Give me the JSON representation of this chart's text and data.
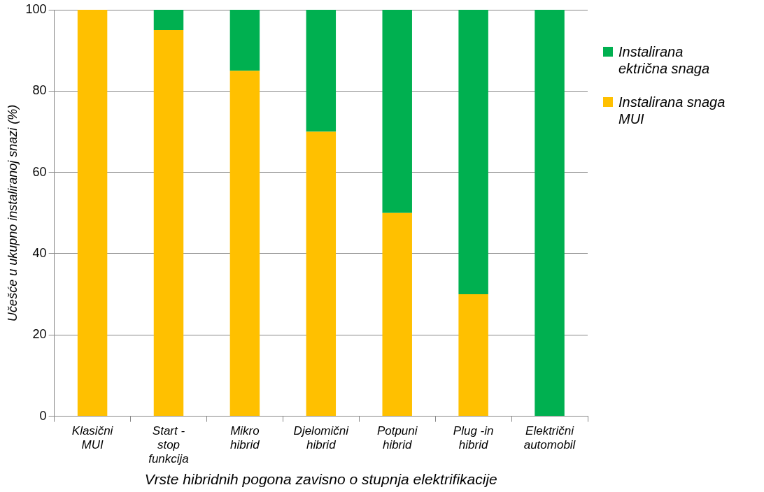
{
  "chart_data": {
    "type": "bar",
    "stacked": true,
    "xlabel": "Vrste hibridnih pogona zavisno o stupnja elektrifikacije",
    "ylabel": "Učešće u ukupno instaliranoj snazi (%)",
    "categories": [
      "Klasični\nMUI",
      "Start -\nstop\nfunkcija",
      "Mikro\nhibrid",
      "Djelomični\nhibrid",
      "Potpuni\nhibrid",
      "Plug -in\nhibrid",
      "Električni\nautomobil"
    ],
    "series": [
      {
        "name": "Instalirana snaga\nMUI",
        "color": "#ffc000",
        "values": [
          100,
          95,
          85,
          70,
          50,
          30,
          0
        ]
      },
      {
        "name": "Instalirana\nektrična snaga",
        "color": "#00b050",
        "values": [
          0,
          5,
          15,
          30,
          50,
          70,
          100
        ]
      }
    ],
    "ylim": [
      0,
      100
    ],
    "yticks": [
      0,
      20,
      40,
      60,
      80,
      100
    ],
    "grid": "y",
    "legend": "right"
  }
}
